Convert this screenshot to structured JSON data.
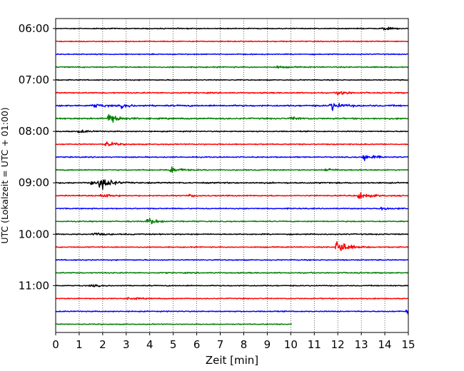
{
  "chart_data": {
    "type": "line",
    "title": "",
    "xlabel": "Zeit  [min]",
    "ylabel": "UTC (Lokalzeit = UTC + 01:00)",
    "xlim": [
      0,
      15
    ],
    "x_ticks": [
      "0",
      "1",
      "2",
      "3",
      "4",
      "5",
      "6",
      "7",
      "8",
      "9",
      "10",
      "11",
      "12",
      "13",
      "14",
      "15"
    ],
    "y_ticks": [
      "06:00",
      "07:00",
      "08:00",
      "09:00",
      "10:00",
      "11:00"
    ],
    "grid": "vertical dotted lines at each minute",
    "line_interval_minutes": 15,
    "colors": [
      "#000000",
      "#ff0000",
      "#0000ff",
      "#007f00"
    ],
    "traces": [
      {
        "start": "06:00",
        "color": "#000000",
        "end_min": 15,
        "noise": 1.0,
        "events": [
          {
            "t": 13.9,
            "amp": 3
          }
        ]
      },
      {
        "start": "06:15",
        "color": "#ff0000",
        "end_min": 15,
        "noise": 1.0,
        "events": []
      },
      {
        "start": "06:30",
        "color": "#0000ff",
        "end_min": 15,
        "noise": 1.0,
        "events": []
      },
      {
        "start": "06:45",
        "color": "#007f00",
        "end_min": 15,
        "noise": 1.2,
        "events": [
          {
            "t": 9.4,
            "amp": 2
          }
        ]
      },
      {
        "start": "07:00",
        "color": "#000000",
        "end_min": 15,
        "noise": 1.0,
        "events": []
      },
      {
        "start": "07:15",
        "color": "#ff0000",
        "end_min": 15,
        "noise": 1.3,
        "events": [
          {
            "t": 12.0,
            "amp": 5
          }
        ]
      },
      {
        "start": "07:30",
        "color": "#0000ff",
        "end_min": 15,
        "noise": 1.6,
        "events": [
          {
            "t": 11.7,
            "amp": 9
          },
          {
            "t": 1.6,
            "amp": 4
          },
          {
            "t": 2.8,
            "amp": 3
          }
        ]
      },
      {
        "start": "07:45",
        "color": "#007f00",
        "end_min": 15,
        "noise": 1.5,
        "events": [
          {
            "t": 2.25,
            "amp": 11
          },
          {
            "t": 10.0,
            "amp": 3
          }
        ]
      },
      {
        "start": "08:00",
        "color": "#000000",
        "end_min": 15,
        "noise": 1.1,
        "events": [
          {
            "t": 1.0,
            "amp": 3
          }
        ]
      },
      {
        "start": "08:15",
        "color": "#ff0000",
        "end_min": 15,
        "noise": 1.1,
        "events": [
          {
            "t": 2.15,
            "amp": 5
          }
        ]
      },
      {
        "start": "08:30",
        "color": "#0000ff",
        "end_min": 15,
        "noise": 1.1,
        "events": [
          {
            "t": 13.1,
            "amp": 8
          }
        ]
      },
      {
        "start": "08:45",
        "color": "#007f00",
        "end_min": 15,
        "noise": 1.2,
        "events": [
          {
            "t": 4.9,
            "amp": 6
          },
          {
            "t": 11.5,
            "amp": 3
          }
        ]
      },
      {
        "start": "09:00",
        "color": "#000000",
        "end_min": 15,
        "noise": 1.4,
        "events": [
          {
            "t": 1.9,
            "amp": 13
          },
          {
            "t": 1.4,
            "amp": 5
          }
        ]
      },
      {
        "start": "09:15",
        "color": "#ff0000",
        "end_min": 15,
        "noise": 1.2,
        "events": [
          {
            "t": 12.9,
            "amp": 8
          },
          {
            "t": 1.95,
            "amp": 4
          },
          {
            "t": 5.7,
            "amp": 2
          }
        ]
      },
      {
        "start": "09:30",
        "color": "#0000ff",
        "end_min": 15,
        "noise": 1.1,
        "events": [
          {
            "t": 13.8,
            "amp": 3
          }
        ]
      },
      {
        "start": "09:45",
        "color": "#007f00",
        "end_min": 15,
        "noise": 1.1,
        "events": [
          {
            "t": 3.9,
            "amp": 8
          }
        ]
      },
      {
        "start": "10:00",
        "color": "#000000",
        "end_min": 15,
        "noise": 1.2,
        "events": [
          {
            "t": 1.6,
            "amp": 3
          }
        ]
      },
      {
        "start": "10:15",
        "color": "#ff0000",
        "end_min": 15,
        "noise": 1.1,
        "events": [
          {
            "t": 11.95,
            "amp": 17
          }
        ]
      },
      {
        "start": "10:30",
        "color": "#0000ff",
        "end_min": 15,
        "noise": 1.1,
        "events": []
      },
      {
        "start": "10:45",
        "color": "#007f00",
        "end_min": 15,
        "noise": 1.2,
        "events": []
      },
      {
        "start": "11:00",
        "color": "#000000",
        "end_min": 15,
        "noise": 1.0,
        "events": [
          {
            "t": 1.5,
            "amp": 2
          }
        ]
      },
      {
        "start": "11:15",
        "color": "#ff0000",
        "end_min": 15,
        "noise": 1.0,
        "events": [
          {
            "t": 3.1,
            "amp": 2
          }
        ]
      },
      {
        "start": "11:30",
        "color": "#0000ff",
        "end_min": 15,
        "noise": 1.1,
        "events": [
          {
            "t": 14.95,
            "amp": 5
          }
        ]
      },
      {
        "start": "11:45",
        "color": "#007f00",
        "end_min": 10.05,
        "noise": 1.0,
        "events": []
      }
    ]
  }
}
